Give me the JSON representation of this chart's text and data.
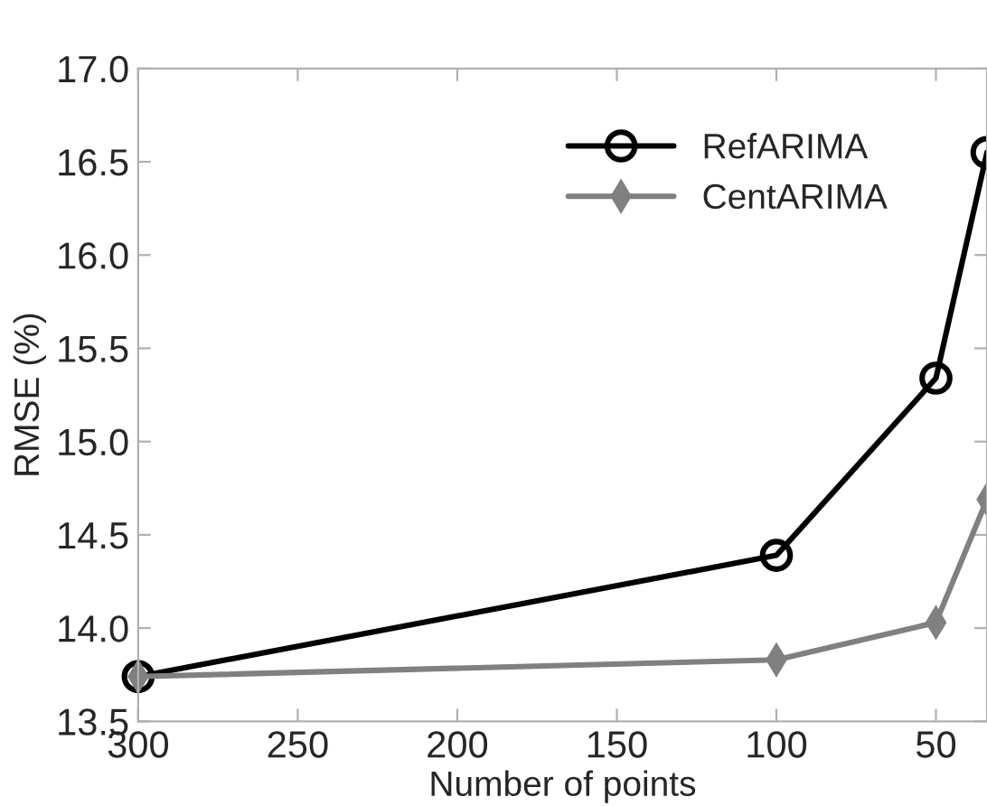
{
  "chart_data": {
    "type": "line",
    "xlabel": "Number of points",
    "ylabel": "RMSE (%)",
    "x": [
      300,
      100,
      50,
      34
    ],
    "series": [
      {
        "name": "RefARIMA",
        "color": "#000000",
        "marker": "circle",
        "values": [
          13.74,
          14.39,
          15.34,
          16.55
        ]
      },
      {
        "name": "CentARIMA",
        "color": "#808080",
        "marker": "diamond",
        "values": [
          13.74,
          13.83,
          14.03,
          14.69
        ]
      }
    ],
    "xlim": [
      300,
      34
    ],
    "xticks": [
      300,
      250,
      200,
      150,
      100,
      50
    ],
    "ylim": [
      13.5,
      17.0
    ],
    "yticks": [
      {
        "value": 13.5,
        "label": "13.5"
      },
      {
        "value": 14.0,
        "label": "14.0"
      },
      {
        "value": 14.5,
        "label": "14.5"
      },
      {
        "value": 15.0,
        "label": "15.0"
      },
      {
        "value": 15.5,
        "label": "15.5"
      },
      {
        "value": 16.0,
        "label": "16.0"
      },
      {
        "value": 16.5,
        "label": "16.5"
      },
      {
        "value": 17.0,
        "label": "17.0"
      }
    ],
    "grid": false,
    "legend": "top right",
    "line_style": "solid"
  }
}
